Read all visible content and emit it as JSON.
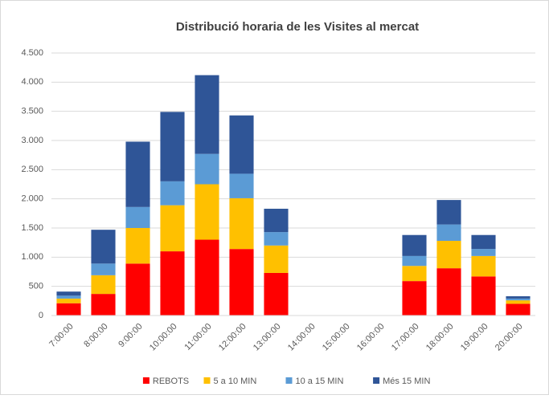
{
  "chart_data": {
    "type": "bar",
    "stacked": true,
    "title": "Distribució horaria de les Visites al mercat",
    "categories": [
      "7:00:00",
      "8:00:00",
      "9:00:00",
      "10:00:00",
      "11:00:00",
      "12:00:00",
      "13:00:00",
      "14:00:00",
      "15:00:00",
      "16:00:00",
      "17:00:00",
      "18:00:00",
      "19:00:00",
      "20:00:00"
    ],
    "series": [
      {
        "name": "REBOTS",
        "color": "#ff0000",
        "values": [
          210,
          370,
          890,
          1100,
          1300,
          1140,
          730,
          0,
          0,
          0,
          590,
          810,
          670,
          200
        ]
      },
      {
        "name": "5 a 10 MIN",
        "color": "#ffc000",
        "values": [
          80,
          320,
          610,
          790,
          950,
          870,
          470,
          0,
          0,
          0,
          260,
          470,
          350,
          60
        ]
      },
      {
        "name": "10 a 15 MIN",
        "color": "#5b9bd5",
        "values": [
          50,
          200,
          360,
          410,
          520,
          420,
          230,
          0,
          0,
          0,
          170,
          280,
          120,
          30
        ]
      },
      {
        "name": "Més 15 MIN",
        "color": "#2f5597",
        "values": [
          70,
          580,
          1120,
          1190,
          1350,
          1000,
          400,
          0,
          0,
          0,
          360,
          420,
          240,
          40
        ]
      }
    ],
    "ylim": [
      0,
      4500
    ],
    "yticks": [
      0,
      500,
      {
        "value": 1000,
        "label": "1.000"
      },
      {
        "value": 1500,
        "label": "1.500"
      },
      {
        "value": 2000,
        "label": "2.000"
      },
      {
        "value": 2500,
        "label": "2.500"
      },
      {
        "value": 3000,
        "label": "3.000"
      },
      {
        "value": 3500,
        "label": "3.500"
      },
      {
        "value": 4000,
        "label": "4.000"
      },
      {
        "value": 4500,
        "label": "4.500"
      }
    ],
    "grid": true,
    "legend": "bottom"
  }
}
